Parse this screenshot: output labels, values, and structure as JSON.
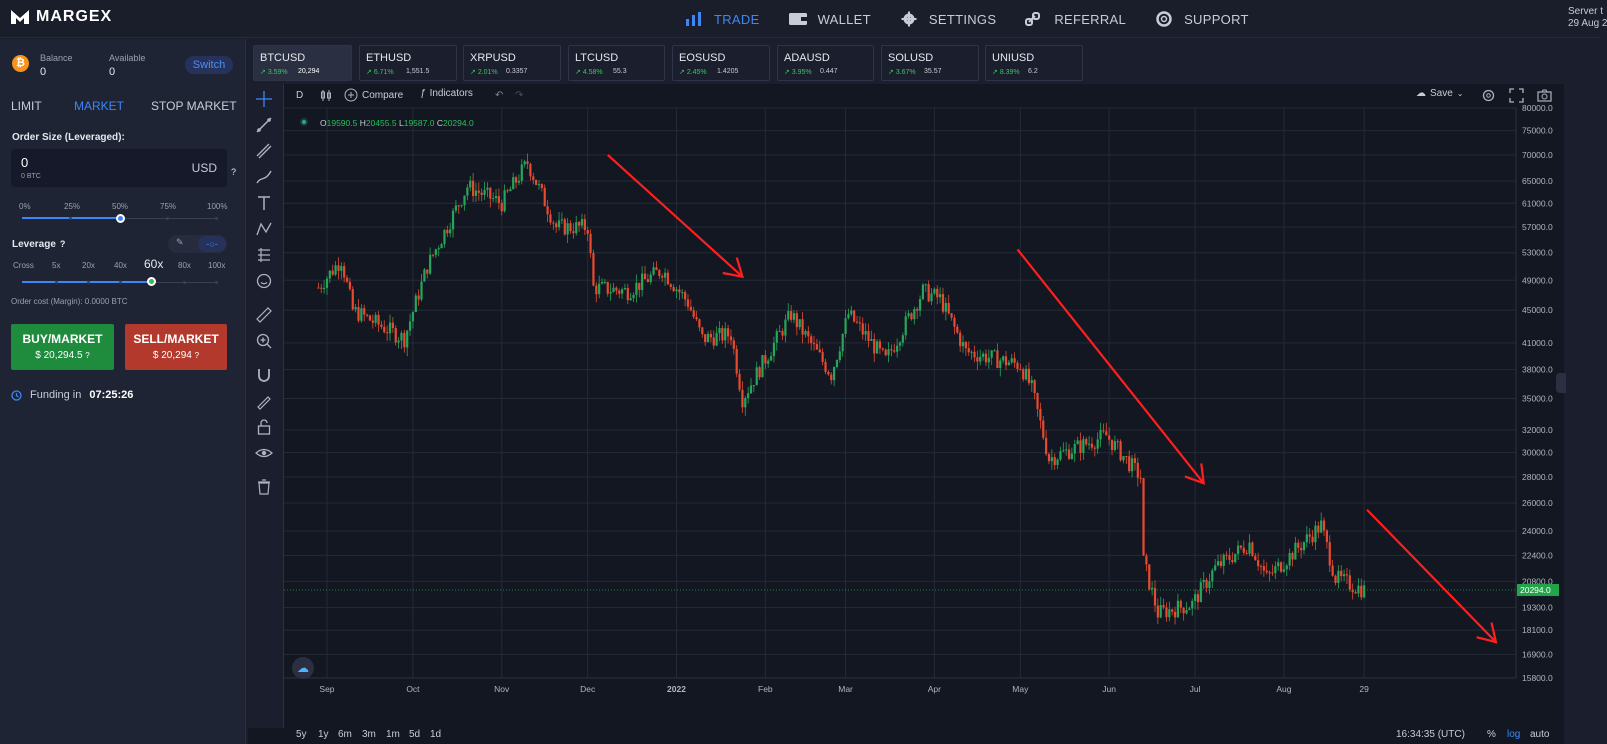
{
  "app": {
    "name": "MARGEX"
  },
  "nav": [
    {
      "label": "TRADE",
      "icon": "bar-chart-icon",
      "active": true
    },
    {
      "label": "WALLET",
      "icon": "wallet-icon",
      "active": false
    },
    {
      "label": "SETTINGS",
      "icon": "gear-icon",
      "active": false
    },
    {
      "label": "REFERRAL",
      "icon": "link-icon",
      "active": false
    },
    {
      "label": "SUPPORT",
      "icon": "lifebuoy-icon",
      "active": false
    }
  ],
  "server": {
    "label": "Server t",
    "date": "29 Aug 2"
  },
  "account": {
    "balance_label": "Balance",
    "balance": "0",
    "available_label": "Available",
    "available": "0",
    "switch_label": "Switch",
    "coin": "₿"
  },
  "order_tabs": [
    "LIMIT",
    "MARKET",
    "STOP MARKET"
  ],
  "order_form": {
    "size_label": "Order Size (Leveraged):",
    "size_value": "0",
    "size_btc": "0 BTC",
    "size_unit": "USD",
    "help": "?",
    "size_marks": [
      "0%",
      "25%",
      "50%",
      "75%",
      "100%"
    ],
    "size_pct": 50,
    "leverage_label": "Leverage",
    "leverage_marks": [
      "Cross",
      "5x",
      "20x",
      "40x",
      "60x",
      "80x",
      "100x"
    ],
    "leverage_selected": "60x",
    "order_cost": "Order cost (Margin): 0.0000 BTC",
    "buy_label": "BUY/MARKET",
    "buy_price": "$ 20,294.5",
    "sell_label": "SELL/MARKET",
    "sell_price": "$ 20,294",
    "funding_label": "Funding in",
    "funding_time": "07:25:26"
  },
  "tickers": [
    {
      "name": "BTCUSD",
      "pct": "3.59%",
      "price": "20,294",
      "active": true
    },
    {
      "name": "ETHUSD",
      "pct": "6.71%",
      "price": "1,551.5",
      "active": false
    },
    {
      "name": "XRPUSD",
      "pct": "2.01%",
      "price": "0.3357",
      "active": false
    },
    {
      "name": "LTCUSD",
      "pct": "4.58%",
      "price": "55.3",
      "active": false
    },
    {
      "name": "EOSUSD",
      "pct": "2.45%",
      "price": "1.4205",
      "active": false
    },
    {
      "name": "ADAUSD",
      "pct": "3.95%",
      "price": "0.447",
      "active": false
    },
    {
      "name": "SOLUSD",
      "pct": "3.67%",
      "price": "35.57",
      "active": false
    },
    {
      "name": "UNIUSD",
      "pct": "8.39%",
      "price": "6.2",
      "active": false
    }
  ],
  "chart_toolbar": {
    "interval": "D",
    "compare": "Compare",
    "indicators": "Indicators",
    "save": "Save"
  },
  "ohlc": {
    "o": "O",
    "o_val": "19590.5",
    "h": "H",
    "h_val": "20455.5",
    "l": "L",
    "l_val": "19587.0",
    "c": "C",
    "c_val": "20294.0"
  },
  "bottom_bar": {
    "ranges": [
      "5y",
      "1y",
      "6m",
      "3m",
      "1m",
      "5d",
      "1d"
    ],
    "time": "16:34:35 (UTC)",
    "pct": "%",
    "log": "log",
    "auto": "auto"
  },
  "colors": {
    "up": "#26a65b",
    "down": "#e84a2f",
    "arrow": "#ff1f1f",
    "accent": "#3d86f6",
    "price_tag": "#22a54a"
  },
  "chart_data": {
    "type": "candlestick",
    "symbol": "BTCUSD",
    "scale": "log",
    "ylim": [
      15800,
      80000
    ],
    "y_ticks": [
      80000,
      75000,
      70000,
      65000,
      61000,
      57000,
      53000,
      49000,
      45000,
      41000,
      38000,
      35000,
      32000,
      30000,
      28000,
      26000,
      24000,
      22400,
      20800,
      19300,
      18100,
      16900,
      15800
    ],
    "x_ticks": [
      "Sep",
      "Oct",
      "Nov",
      "Dec",
      "2022",
      "Feb",
      "Mar",
      "Apr",
      "May",
      "Jun",
      "Jul",
      "Aug",
      "29"
    ],
    "last_price": "20294.0",
    "price_path": [
      [
        "2021-08-29",
        48000
      ],
      [
        "2021-09-06",
        52000
      ],
      [
        "2021-09-10",
        45000
      ],
      [
        "2021-09-28",
        41500
      ],
      [
        "2021-10-06",
        51000
      ],
      [
        "2021-10-20",
        64000
      ],
      [
        "2021-11-01",
        61000
      ],
      [
        "2021-11-10",
        68500
      ],
      [
        "2021-11-20",
        57000
      ],
      [
        "2021-12-01",
        57000
      ],
      [
        "2021-12-03",
        48000
      ],
      [
        "2021-12-15",
        47500
      ],
      [
        "2021-12-27",
        50500
      ],
      [
        "2022-01-05",
        46000
      ],
      [
        "2022-01-10",
        41500
      ],
      [
        "2022-01-20",
        42000
      ],
      [
        "2022-01-24",
        35000
      ],
      [
        "2022-02-10",
        44500
      ],
      [
        "2022-02-24",
        37500
      ],
      [
        "2022-03-02",
        44500
      ],
      [
        "2022-03-15",
        39000
      ],
      [
        "2022-03-28",
        47500
      ],
      [
        "2022-04-03",
        46500
      ],
      [
        "2022-04-12",
        40000
      ],
      [
        "2022-05-01",
        38500
      ],
      [
        "2022-05-05",
        36000
      ],
      [
        "2022-05-11",
        29500
      ],
      [
        "2022-05-31",
        31500
      ],
      [
        "2022-06-12",
        28000
      ],
      [
        "2022-06-13",
        22000
      ],
      [
        "2022-06-18",
        19000
      ],
      [
        "2022-06-30",
        19500
      ],
      [
        "2022-07-08",
        21600
      ],
      [
        "2022-07-20",
        23200
      ],
      [
        "2022-07-26",
        21000
      ],
      [
        "2022-08-14",
        24400
      ],
      [
        "2022-08-19",
        21000
      ],
      [
        "2022-08-26",
        20500
      ],
      [
        "2022-08-29",
        20294
      ]
    ],
    "annotations": [
      {
        "type": "arrow",
        "from": [
          "2021-12-08",
          70000
        ],
        "to": [
          "2022-01-24",
          49500
        ]
      },
      {
        "type": "arrow",
        "from": [
          "2022-04-30",
          53500
        ],
        "to": [
          "2022-07-04",
          27500
        ]
      },
      {
        "type": "arrow",
        "from": [
          "2022-08-30",
          25500
        ],
        "to": [
          "2022-10-14",
          17500
        ]
      }
    ]
  }
}
